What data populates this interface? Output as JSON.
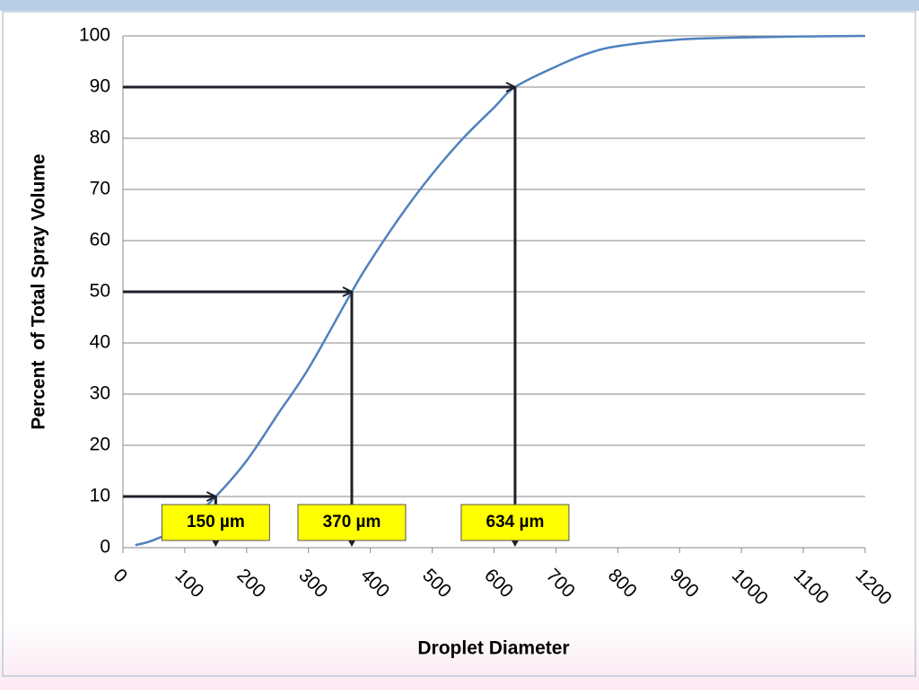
{
  "chart_data": {
    "type": "line",
    "xlabel": "Droplet Diameter",
    "ylabel": "Percent  of Total Spray Volume",
    "x": [
      20,
      50,
      100,
      150,
      200,
      250,
      300,
      370,
      400,
      450,
      500,
      550,
      600,
      634,
      700,
      750,
      800,
      900,
      1000,
      1100,
      1200
    ],
    "series": [
      {
        "color": "#4f81bd",
        "values": [
          0.5,
          1.5,
          4.5,
          10,
          17,
          26,
          35,
          50,
          56,
          65,
          73,
          80,
          86,
          90,
          94,
          96.5,
          98,
          99.3,
          99.7,
          99.9,
          100
        ]
      }
    ],
    "xlim": [
      0,
      1200
    ],
    "xticks": [
      0,
      100,
      200,
      300,
      400,
      500,
      600,
      700,
      800,
      900,
      1000,
      1100,
      1200
    ],
    "ylim": [
      0,
      100
    ],
    "yticks": [
      0,
      10,
      20,
      30,
      40,
      50,
      60,
      70,
      80,
      90,
      100
    ],
    "grid": true,
    "annotations": [
      {
        "x": 150,
        "y": 10,
        "label": "150 µm"
      },
      {
        "x": 370,
        "y": 50,
        "label": "370 µm"
      },
      {
        "x": 634,
        "y": 90,
        "label": "634 µm"
      }
    ]
  }
}
